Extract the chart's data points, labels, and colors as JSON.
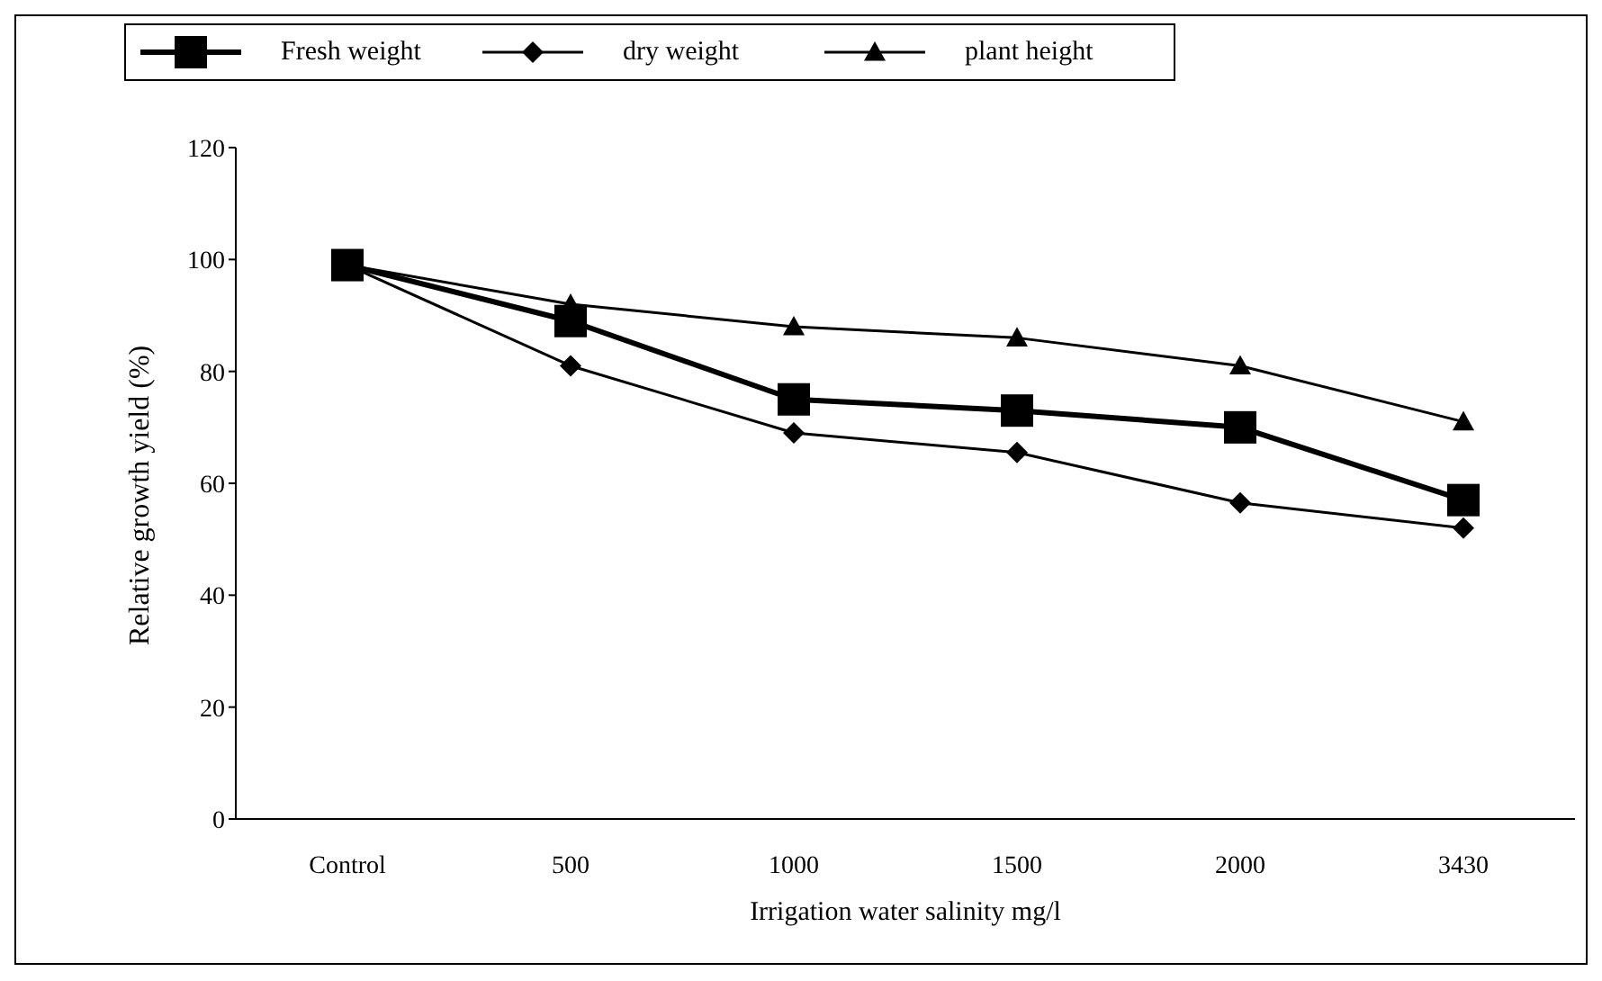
{
  "chart_data": {
    "type": "line",
    "xlabel": "Irrigation water salinity mg/l",
    "ylabel": "Relative growth yield (%)",
    "categories": [
      "Control",
      "500",
      "1000",
      "1500",
      "2000",
      "3430"
    ],
    "series": [
      {
        "name": "Fresh weight",
        "color": "#000000",
        "marker": "square",
        "values": [
          99,
          89,
          75,
          73,
          70,
          57
        ]
      },
      {
        "name": "dry weight",
        "color": "#000000",
        "marker": "diamond",
        "values": [
          99,
          81,
          69,
          65.5,
          56.5,
          52
        ]
      },
      {
        "name": "plant height",
        "color": "#000000",
        "marker": "triangle",
        "values": [
          99,
          92,
          88,
          86,
          81,
          71
        ]
      }
    ],
    "ylim": [
      0,
      120
    ],
    "yticks": [
      0,
      20,
      40,
      60,
      80,
      100,
      120
    ],
    "grid": false,
    "legend": "top",
    "line_style": "solid"
  }
}
